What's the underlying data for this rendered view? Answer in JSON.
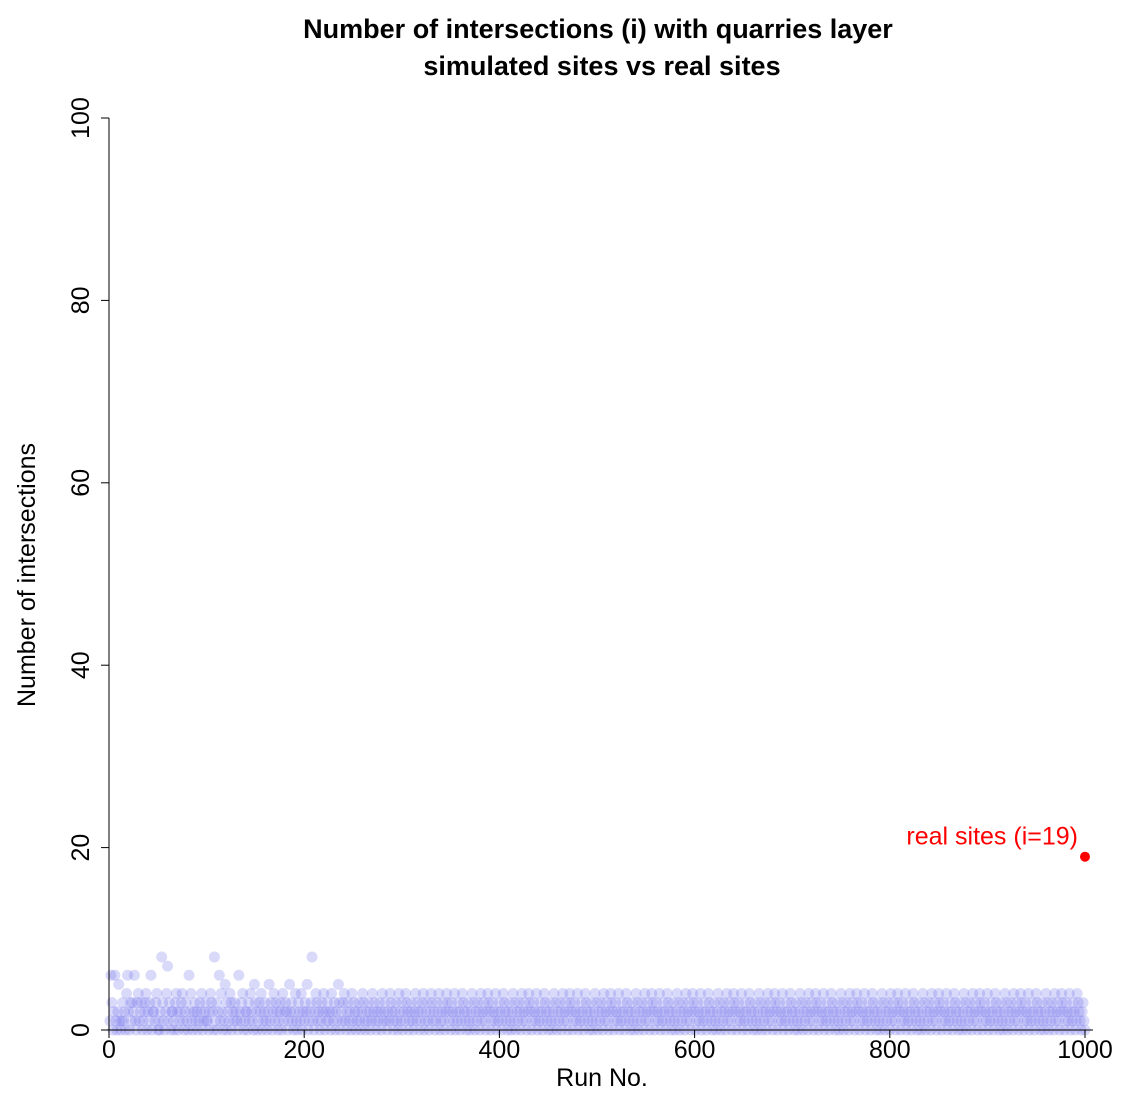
{
  "chart_data": {
    "type": "scatter",
    "title": [
      "Number of intersections (i) with quarries layer",
      "simulated sites vs real sites"
    ],
    "xlabel": "Run No.",
    "ylabel": "Number of intersections",
    "xlim": [
      0,
      1000
    ],
    "ylim": [
      0,
      100
    ],
    "xticks": [
      "0",
      "200",
      "400",
      "600",
      "800",
      "1000"
    ],
    "yticks": [
      "0",
      "20",
      "40",
      "60",
      "80",
      "100"
    ],
    "grid": false,
    "legend": "none",
    "simulated": {
      "n_runs": 1000,
      "values": [
        1,
        6,
        3,
        0,
        2,
        6,
        1,
        0,
        2,
        5,
        1,
        0,
        1,
        3,
        1,
        2,
        0,
        4,
        6,
        2,
        0,
        3,
        1,
        3,
        2,
        6,
        1,
        0,
        3,
        4,
        1,
        2,
        3,
        0,
        1,
        2,
        3,
        4,
        0,
        2,
        1,
        3,
        6,
        0,
        2,
        2,
        1,
        3,
        4,
        0,
        1,
        0,
        2,
        8,
        3,
        1,
        0,
        2,
        4,
        7,
        1,
        3,
        0,
        2,
        2,
        1,
        0,
        3,
        4,
        2,
        0,
        1,
        2,
        3,
        4,
        1,
        0,
        2,
        3,
        1,
        0,
        6,
        2,
        4,
        1,
        0,
        2,
        3,
        1,
        2,
        0,
        1,
        3,
        2,
        4,
        0,
        1,
        2,
        3,
        1,
        1,
        0,
        2,
        4,
        3,
        2,
        0,
        8,
        1,
        3,
        0,
        2,
        6,
        1,
        4,
        2,
        0,
        1,
        5,
        3,
        0,
        2,
        1,
        4,
        3,
        0,
        2,
        1,
        3,
        2,
        1,
        0,
        6,
        2,
        1,
        3,
        4,
        0,
        1,
        2,
        2,
        0,
        3,
        1,
        4,
        2,
        1,
        0,
        5,
        3,
        2,
        0,
        1,
        3,
        2,
        4,
        0,
        1,
        2,
        3,
        1,
        0,
        2,
        5,
        1,
        3,
        0,
        2,
        4,
        1,
        3,
        2,
        0,
        1,
        2,
        3,
        0,
        4,
        1,
        2,
        3,
        2,
        0,
        1,
        5,
        2,
        3,
        1,
        0,
        2,
        4,
        1,
        0,
        3,
        2,
        1,
        4,
        0,
        2,
        1,
        3,
        2,
        5,
        0,
        1,
        2,
        3,
        8,
        1,
        0,
        2,
        4,
        3,
        1,
        2,
        0,
        1,
        3,
        2,
        4,
        0,
        2,
        1,
        3,
        1,
        2,
        0,
        4,
        2,
        1,
        3,
        0,
        2,
        1,
        5,
        3,
        0,
        2,
        1,
        3,
        4,
        1,
        0,
        2,
        3,
        1,
        2,
        0,
        4,
        1,
        3,
        2,
        0,
        1,
        2,
        3,
        1,
        0,
        2,
        4,
        3,
        1,
        0,
        2,
        1,
        3,
        2,
        0,
        1,
        4,
        2,
        3,
        1,
        0,
        2,
        1,
        3,
        2,
        0,
        4,
        1,
        2,
        3,
        1,
        0,
        2,
        1,
        4,
        3,
        2,
        0,
        1,
        2,
        3,
        1,
        0,
        4,
        2,
        1,
        3,
        0,
        2,
        1,
        4,
        3,
        2,
        0,
        1,
        2,
        3,
        1,
        0,
        2,
        4,
        1,
        3,
        2,
        0,
        1,
        2,
        3,
        4,
        0,
        1,
        2,
        3,
        1,
        0,
        2,
        4,
        3,
        1,
        2,
        0,
        1,
        3,
        2,
        4,
        0,
        1,
        2,
        3,
        1,
        0,
        2,
        4,
        3,
        2,
        1,
        0,
        3,
        2,
        1,
        4,
        0,
        2,
        1,
        3,
        2,
        0,
        1,
        4,
        3,
        2,
        1,
        0,
        2,
        3,
        1,
        0,
        2,
        4,
        1,
        3,
        0,
        2,
        1,
        3,
        2,
        0,
        4,
        1,
        2,
        3,
        1,
        0,
        2,
        4,
        3,
        2,
        0,
        1,
        3,
        2,
        1,
        4,
        0,
        2,
        1,
        3,
        2,
        0,
        1,
        4,
        3,
        2,
        1,
        0,
        2,
        3,
        1,
        0,
        2,
        4,
        1,
        3,
        0,
        2,
        1,
        3,
        2,
        0,
        4,
        1,
        2,
        3,
        1,
        0,
        2,
        4,
        3,
        2,
        0,
        1,
        3,
        2,
        1,
        4,
        0,
        2,
        1,
        3,
        2,
        0,
        1,
        4,
        3,
        2,
        1,
        0,
        2,
        3,
        1,
        0,
        2,
        4,
        1,
        3,
        0,
        2,
        1,
        3,
        2,
        0,
        4,
        1,
        2,
        3,
        1,
        0,
        2,
        4,
        3,
        2,
        0,
        1,
        3,
        2,
        1,
        4,
        0,
        2,
        1,
        3,
        2,
        0,
        1,
        4,
        3,
        2,
        1,
        0,
        2,
        3,
        1,
        0,
        2,
        4,
        1,
        3,
        0,
        2,
        1,
        3,
        2,
        0,
        4,
        1,
        2,
        3,
        1,
        0,
        2,
        4,
        3,
        2,
        0,
        1,
        3,
        2,
        1,
        4,
        0,
        2,
        1,
        3,
        2,
        0,
        1,
        4,
        3,
        2,
        1,
        0,
        2,
        3,
        1,
        0,
        2,
        4,
        1,
        3,
        0,
        2,
        1,
        3,
        2,
        0,
        4,
        1,
        2,
        3,
        1,
        0,
        2,
        4,
        3,
        2,
        0,
        1,
        3,
        2,
        1,
        4,
        0,
        2,
        1,
        3,
        2,
        0,
        1,
        4,
        3,
        2,
        1,
        0,
        2,
        3,
        1,
        0,
        2,
        4,
        1,
        3,
        0,
        2,
        1,
        3,
        2,
        0,
        4,
        1,
        2,
        3,
        1,
        0,
        2,
        4,
        3,
        2,
        0,
        1,
        3,
        2,
        1,
        4,
        0,
        2,
        1,
        3,
        2,
        0,
        1,
        4,
        3,
        2,
        1,
        0,
        2,
        3,
        1,
        0,
        2,
        4,
        1,
        3,
        0,
        2,
        1,
        3,
        2,
        0,
        4,
        1,
        2,
        3,
        1,
        0,
        2,
        4,
        3,
        2,
        0,
        1,
        3,
        2,
        1,
        4,
        0,
        2,
        1,
        3,
        2,
        0,
        1,
        4,
        3,
        2,
        1,
        0,
        2,
        3,
        1,
        0,
        2,
        4,
        1,
        3,
        0,
        2,
        1,
        3,
        2,
        0,
        4,
        1,
        2,
        3,
        1,
        0,
        2,
        4,
        3,
        2,
        0,
        1,
        3,
        2,
        1,
        4,
        0,
        2,
        1,
        3,
        2,
        0,
        1,
        4,
        3,
        2,
        1,
        0,
        2,
        3,
        1,
        0,
        2,
        4,
        1,
        3,
        0,
        2,
        1,
        3,
        2,
        0,
        4,
        1,
        2,
        3,
        1,
        0,
        2,
        4,
        3,
        2,
        0,
        1,
        3,
        2,
        1,
        4,
        0,
        2,
        1,
        3,
        2,
        0,
        1,
        4,
        3,
        2,
        1,
        0,
        2,
        3,
        1,
        0,
        2,
        4,
        1,
        3,
        0,
        2,
        1,
        3,
        2,
        0,
        4,
        1,
        2,
        3,
        1,
        0,
        2,
        4,
        3,
        2,
        0,
        1,
        3,
        2,
        1,
        4,
        0,
        2,
        1,
        3,
        2,
        0,
        1,
        4,
        3,
        2,
        1,
        0,
        2,
        3,
        1,
        0,
        2,
        4,
        1,
        3,
        0,
        2,
        1,
        3,
        2,
        0,
        4,
        1,
        2,
        3,
        1,
        0,
        2,
        4,
        3,
        2,
        0,
        1,
        3,
        2,
        1,
        4,
        0,
        2,
        1,
        3,
        2,
        0,
        1,
        4,
        3,
        2,
        1,
        0,
        2,
        3,
        1,
        0,
        2,
        4,
        1,
        3,
        0,
        2,
        1,
        3,
        2,
        0,
        4,
        1,
        2,
        3,
        1,
        0,
        2,
        4,
        3,
        2,
        0,
        1,
        3,
        2,
        1,
        4,
        0,
        2,
        1,
        3,
        2,
        0,
        1,
        4,
        3,
        2,
        1,
        0,
        2,
        3,
        1,
        0,
        2,
        4,
        1,
        3,
        0,
        2,
        1,
        3,
        2,
        0,
        4,
        1,
        2,
        3,
        1,
        0,
        2,
        4,
        3,
        2,
        0,
        1,
        3,
        2,
        1,
        4,
        0,
        2,
        1,
        3,
        2,
        0,
        1,
        4,
        3,
        2,
        1,
        0,
        2,
        3,
        1,
        0,
        2,
        4,
        1,
        3,
        0,
        2,
        1,
        3,
        2,
        0,
        4,
        1,
        2,
        3,
        1,
        0,
        2,
        4,
        3,
        2,
        0,
        1,
        3,
        2,
        1,
        4,
        0,
        2,
        1,
        3,
        2,
        0,
        1,
        4,
        3,
        2,
        1,
        0,
        2,
        3,
        1,
        0,
        2,
        4,
        1,
        3,
        0,
        2,
        1,
        3,
        2,
        0,
        4,
        1,
        2,
        3,
        1,
        0,
        2,
        4,
        3,
        2,
        0,
        1,
        3,
        2,
        1,
        4,
        0,
        2,
        1,
        3,
        2,
        0,
        1,
        4,
        3,
        2,
        1,
        0,
        2,
        3,
        1,
        0
      ],
      "color": "#7777ee"
    },
    "real": {
      "x": 1000,
      "y": 19,
      "label": "real sites (i=19)",
      "color": "#ff0000"
    }
  }
}
